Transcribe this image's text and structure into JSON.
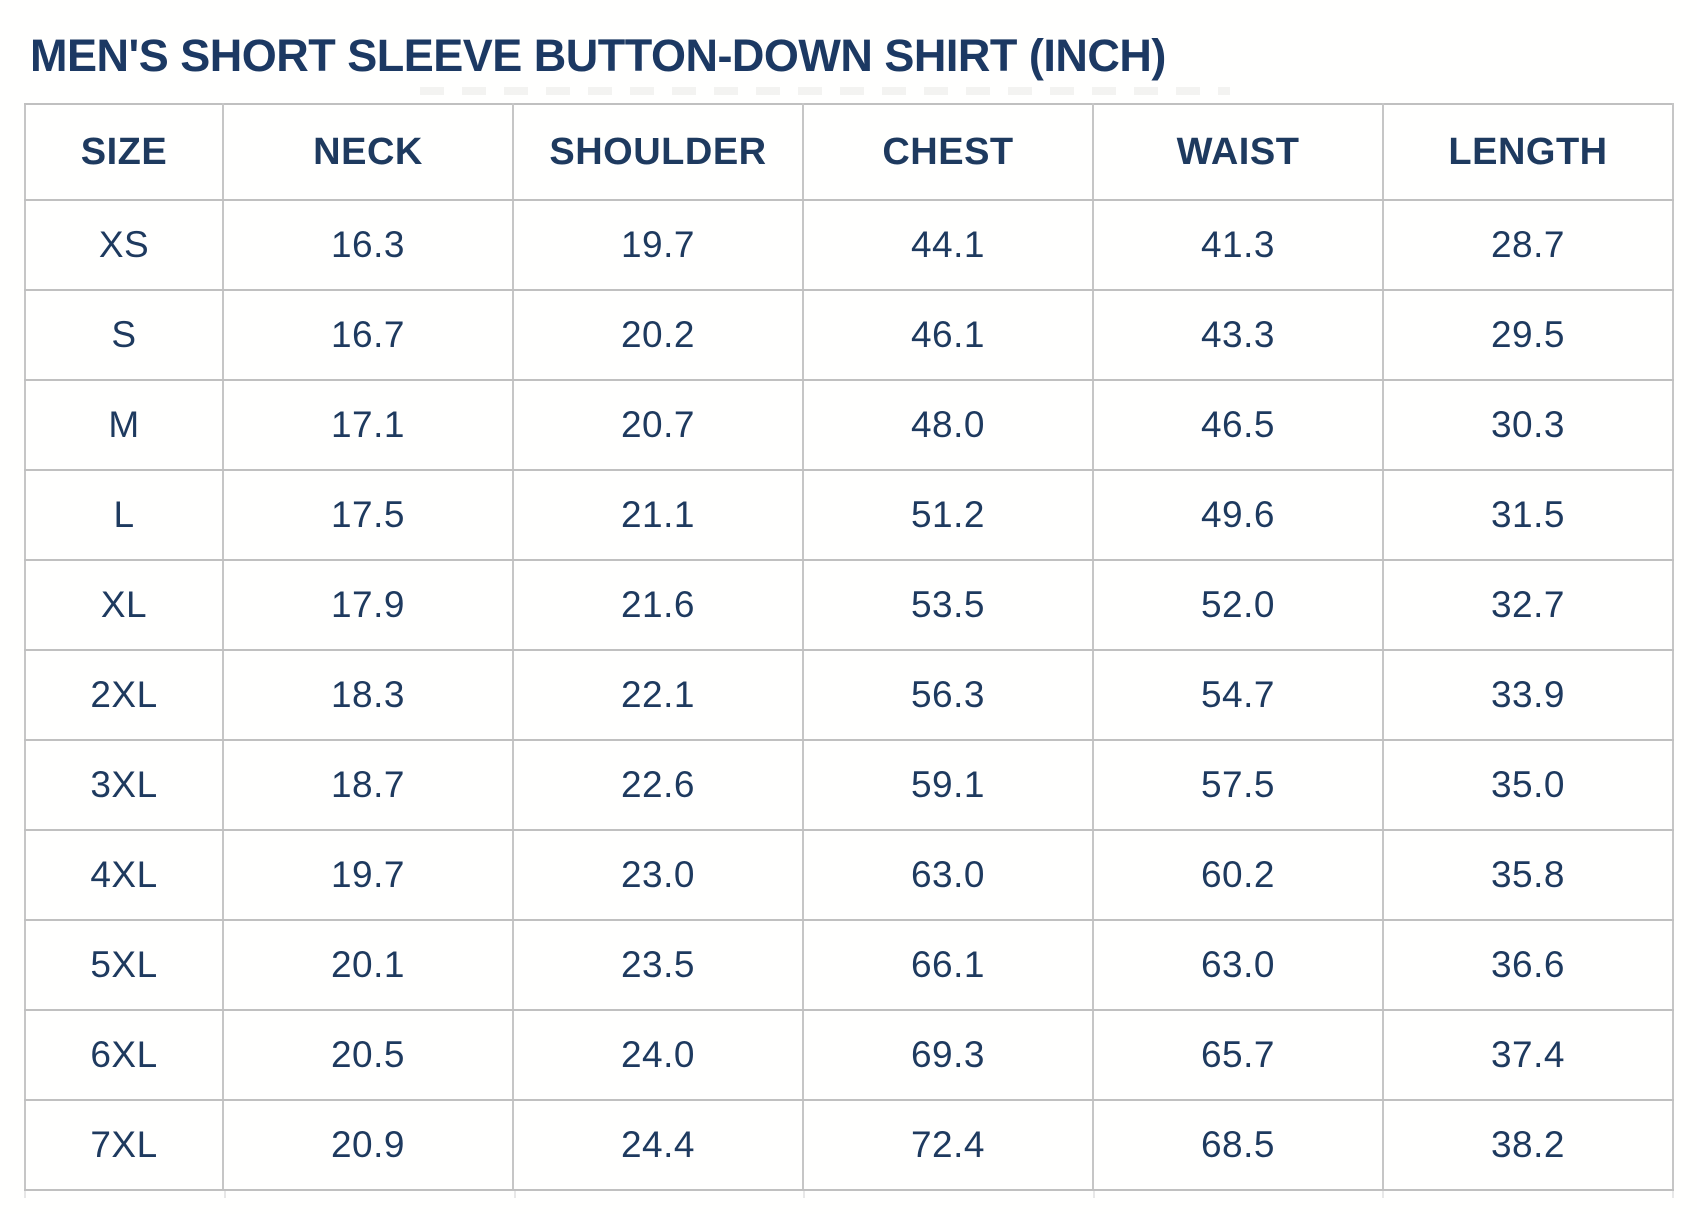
{
  "page_title": "MEN'S SHORT SLEEVE BUTTON-DOWN SHIRT (INCH)",
  "colors": {
    "text_navy": "#1e3a5f",
    "title_navy": "#1c3963",
    "grid_line": "#c4c4c4",
    "background": "#fffffe"
  },
  "chart_data": {
    "type": "table",
    "title": "MEN'S SHORT SLEEVE BUTTON-DOWN SHIRT (INCH)",
    "unit": "inch",
    "columns": [
      "SIZE",
      "NECK",
      "SHOULDER",
      "CHEST",
      "WAIST",
      "LENGTH"
    ],
    "rows": [
      [
        "XS",
        "16.3",
        "19.7",
        "44.1",
        "41.3",
        "28.7"
      ],
      [
        "S",
        "16.7",
        "20.2",
        "46.1",
        "43.3",
        "29.5"
      ],
      [
        "M",
        "17.1",
        "20.7",
        "48.0",
        "46.5",
        "30.3"
      ],
      [
        "L",
        "17.5",
        "21.1",
        "51.2",
        "49.6",
        "31.5"
      ],
      [
        "XL",
        "17.9",
        "21.6",
        "53.5",
        "52.0",
        "32.7"
      ],
      [
        "2XL",
        "18.3",
        "22.1",
        "56.3",
        "54.7",
        "33.9"
      ],
      [
        "3XL",
        "18.7",
        "22.6",
        "59.1",
        "57.5",
        "35.0"
      ],
      [
        "4XL",
        "19.7",
        "23.0",
        "63.0",
        "60.2",
        "35.8"
      ],
      [
        "5XL",
        "20.1",
        "23.5",
        "66.1",
        "63.0",
        "36.6"
      ],
      [
        "6XL",
        "20.5",
        "24.0",
        "69.3",
        "65.7",
        "37.4"
      ],
      [
        "7XL",
        "20.9",
        "24.4",
        "72.4",
        "68.5",
        "38.2"
      ]
    ]
  }
}
